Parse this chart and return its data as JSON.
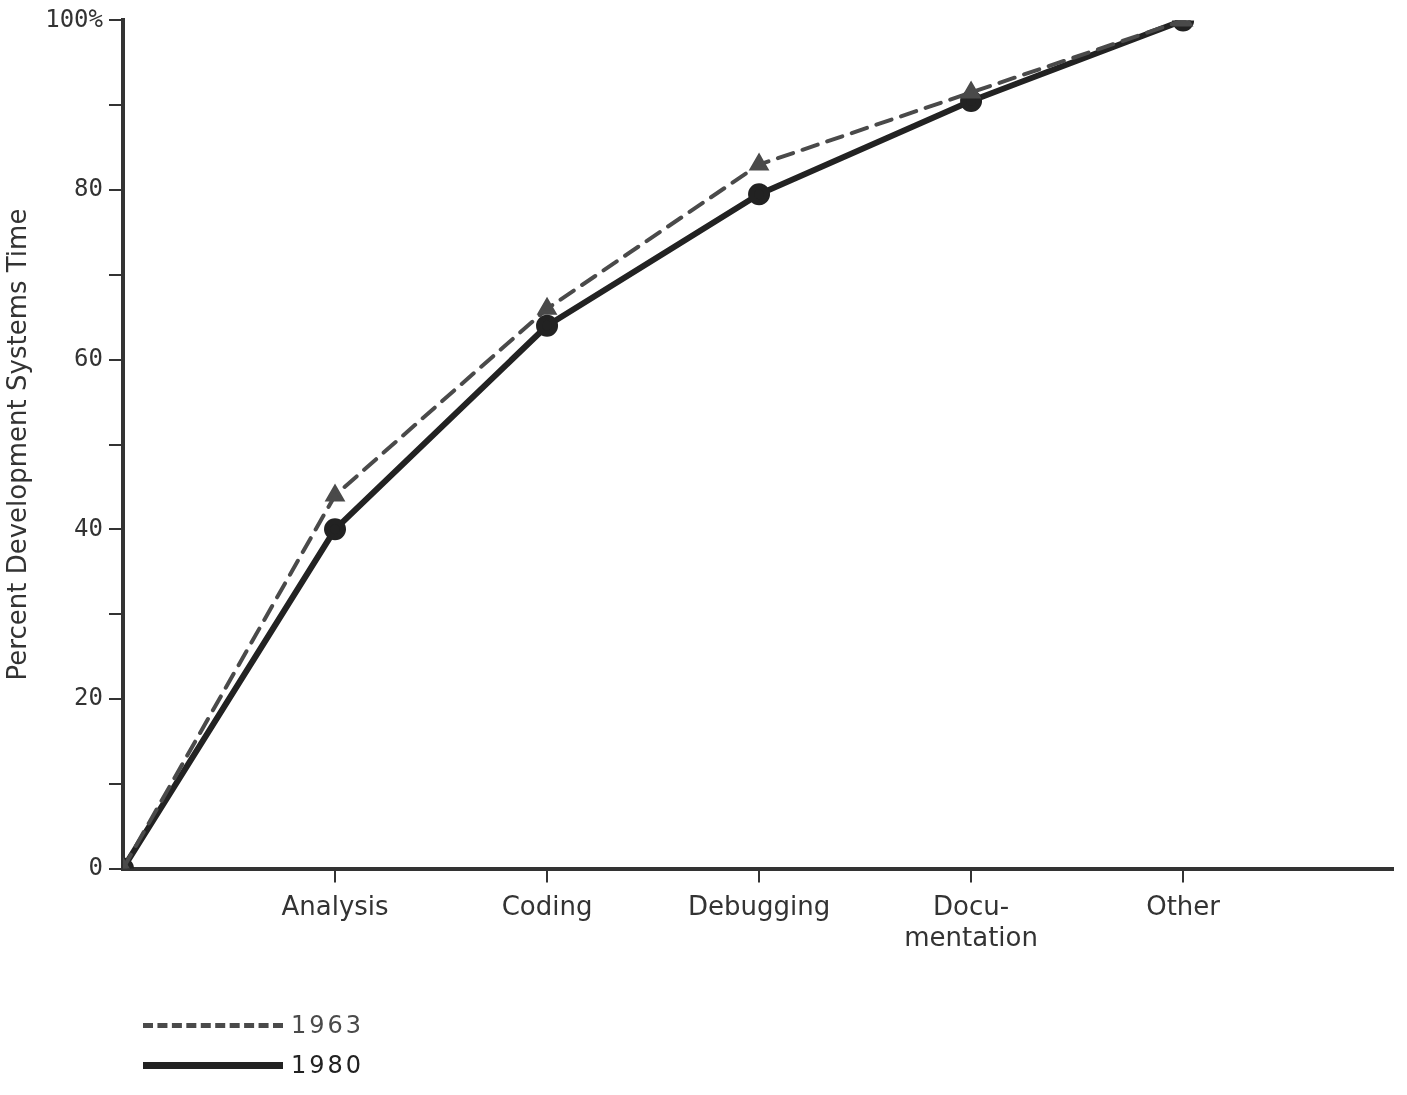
{
  "chart_data": {
    "type": "line",
    "ylabel": "Percent Development Systems Time",
    "categories": [
      null,
      "Analysis",
      "Coding",
      "Debugging",
      "Docu-\nmentation",
      "Other"
    ],
    "series": [
      {
        "name": "1963",
        "color": "#4a4a4a",
        "values": [
          0,
          44,
          66,
          83,
          91.5,
          100
        ],
        "marker": "triangle",
        "line_style": "dashed"
      },
      {
        "name": "1980",
        "color": "#222222",
        "values": [
          0,
          40,
          64,
          79.5,
          90.5,
          100
        ],
        "marker": "circle",
        "line_style": "solid"
      }
    ],
    "ylim": [
      0,
      100
    ],
    "yticks": [
      0,
      {
        "value": 10,
        "label": null
      },
      20,
      {
        "value": 30,
        "label": null
      },
      40,
      {
        "value": 50,
        "label": null
      },
      60,
      {
        "value": 70,
        "label": null
      },
      80,
      {
        "value": 90,
        "label": null
      },
      {
        "value": 100,
        "label": "100%"
      }
    ],
    "grid": false,
    "legend": "bottom left"
  }
}
